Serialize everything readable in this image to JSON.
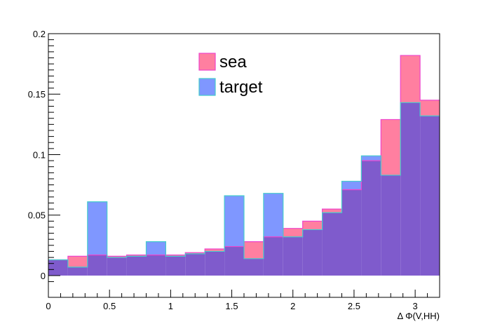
{
  "chart_data": {
    "type": "bar",
    "style": "overlaid-step-histogram",
    "xlabel": "Δ Φ(V,HH)",
    "ylabel": "",
    "title": "",
    "xlim": [
      0,
      3.2
    ],
    "ylim": [
      -0.018,
      0.2
    ],
    "grid": false,
    "legend_position": "top-center",
    "bin_edges": [
      0,
      0.16,
      0.32,
      0.48,
      0.64,
      0.8,
      0.96,
      1.12,
      1.28,
      1.44,
      1.6,
      1.76,
      1.92,
      2.08,
      2.24,
      2.4,
      2.56,
      2.72,
      2.88,
      3.04,
      3.2
    ],
    "x_ticks": [
      0,
      0.5,
      1,
      1.5,
      2,
      2.5,
      3
    ],
    "x_tick_labels": [
      "0",
      "0.5",
      "1",
      "1.5",
      "2",
      "2.5",
      "3"
    ],
    "y_ticks": [
      0,
      0.05,
      0.1,
      0.15,
      0.2
    ],
    "y_tick_labels": [
      "0",
      "0.05",
      "0.1",
      "0.15",
      "0.2"
    ],
    "series": [
      {
        "name": "sea",
        "fill": "#ff7fa0",
        "line": "#ee44cc",
        "values": [
          0.013,
          0.016,
          0.017,
          0.016,
          0.017,
          0.017,
          0.017,
          0.019,
          0.022,
          0.024,
          0.028,
          0.032,
          0.039,
          0.045,
          0.055,
          0.071,
          0.095,
          0.129,
          0.182,
          0.145
        ]
      },
      {
        "name": "target",
        "fill": "#7f97ff",
        "line": "#44cccc",
        "values": [
          0.013,
          0.007,
          0.061,
          0.015,
          0.016,
          0.028,
          0.016,
          0.018,
          0.02,
          0.066,
          0.014,
          0.068,
          0.032,
          0.038,
          0.052,
          0.078,
          0.099,
          0.083,
          0.143,
          0.132
        ]
      }
    ],
    "overlap_fill": "#7f5bcc"
  }
}
